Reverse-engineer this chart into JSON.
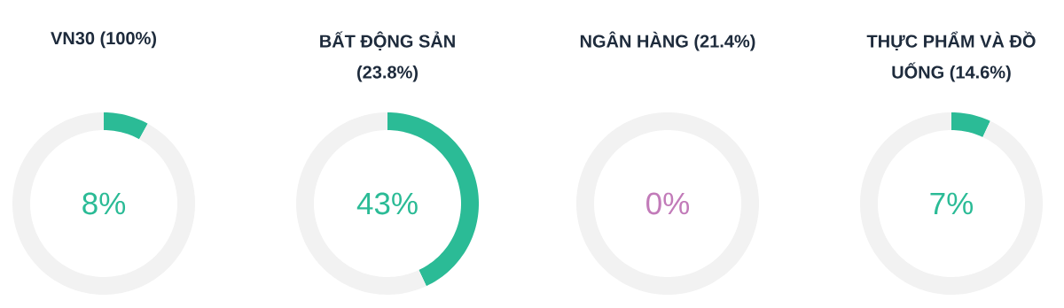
{
  "chart_data": [
    {
      "type": "donut",
      "title": "VN30 (100%)",
      "categories": [
        null,
        null
      ],
      "values": [
        8,
        92
      ],
      "colors": [
        "#2bbb96",
        "#f2f2f2"
      ],
      "annotations": [
        "8%"
      ]
    },
    {
      "type": "donut",
      "title": "BẤT ĐỘNG SẢN (23.8%)",
      "categories": [
        null,
        null
      ],
      "values": [
        43,
        57
      ],
      "colors": [
        "#2bbb96",
        "#f2f2f2"
      ],
      "annotations": [
        "43%"
      ]
    },
    {
      "type": "donut",
      "title": "NGÂN HÀNG (21.4%)",
      "categories": [
        null,
        null
      ],
      "values": [
        0,
        100
      ],
      "colors": [
        "#c27bb9",
        "#f2f2f2"
      ],
      "annotations": [
        "0%"
      ]
    },
    {
      "type": "donut",
      "title": "THỰC PHẨM VÀ ĐỒ UỐNG (14.6%)",
      "categories": [
        null,
        null
      ],
      "values": [
        7,
        93
      ],
      "colors": [
        "#2bbb96",
        "#f2f2f2"
      ],
      "annotations": [
        "7%"
      ]
    }
  ]
}
